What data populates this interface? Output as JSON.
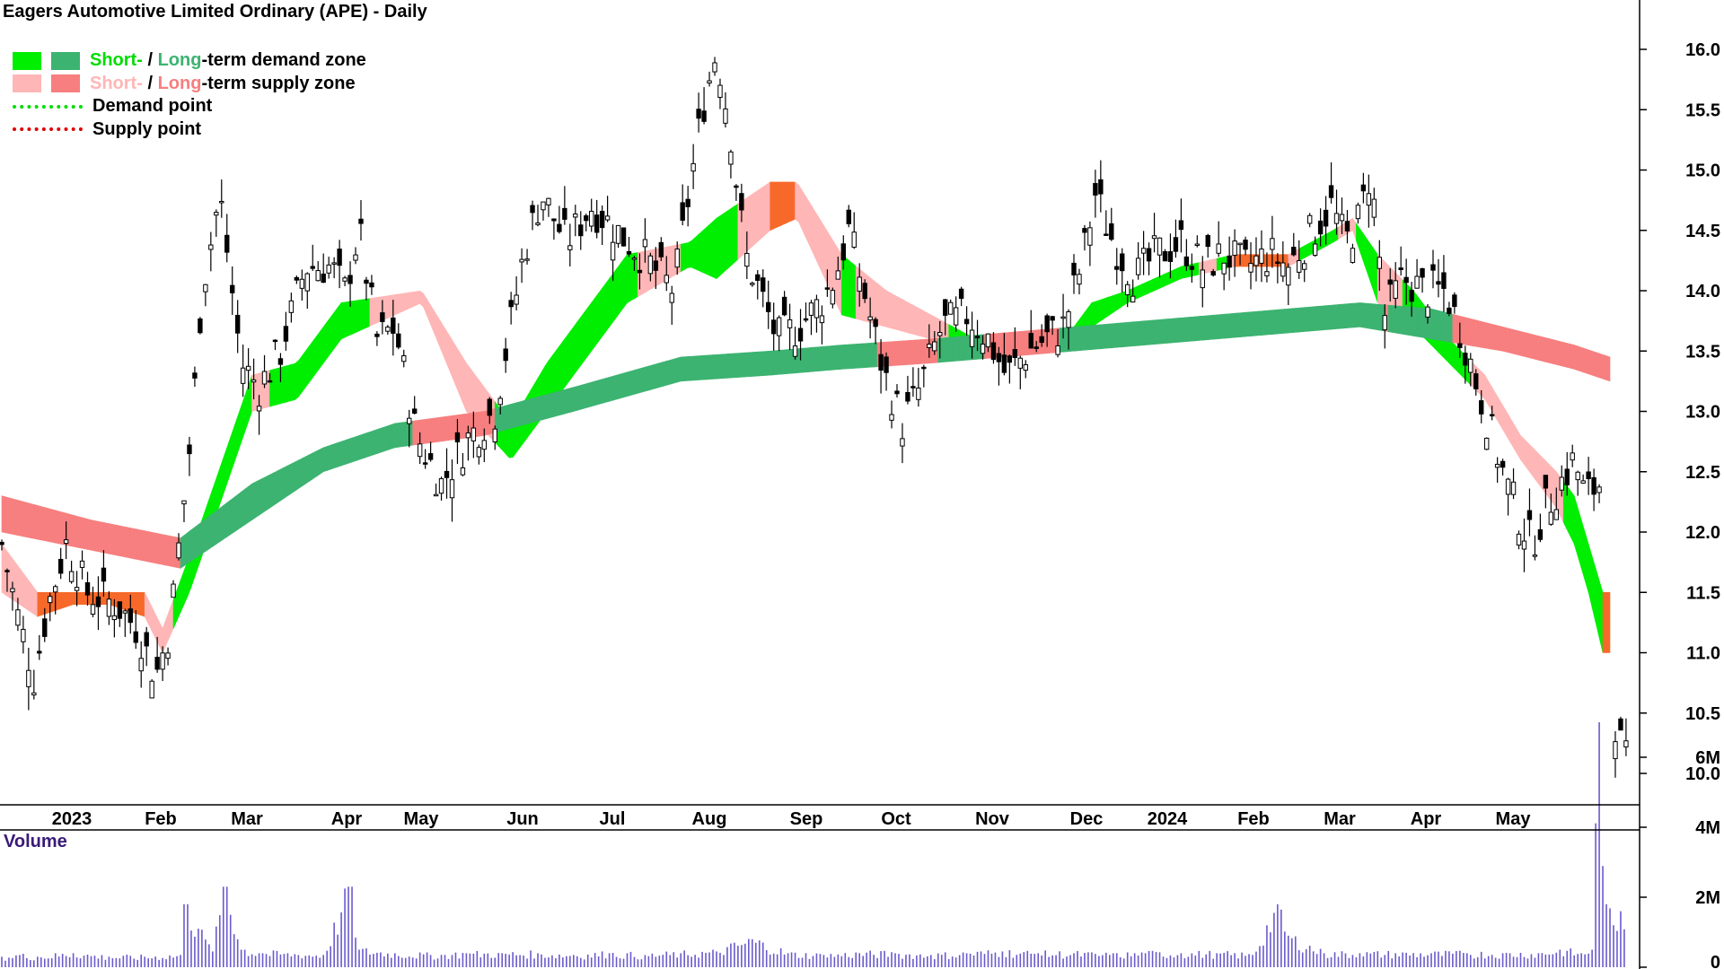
{
  "title": "Eagers Automotive Limited Ordinary (APE) - Daily",
  "legend": {
    "demand_zone": {
      "short": "Short-",
      "sep": " / ",
      "long": "Long",
      "rest": "-term demand zone"
    },
    "supply_zone": {
      "short": "Short-",
      "sep": " / ",
      "long": "Long",
      "rest": "-term supply zone"
    },
    "demand_point": "Demand point",
    "supply_point": "Supply point"
  },
  "colors": {
    "short_demand": "#00ee00",
    "long_demand": "#3cb371",
    "short_supply": "#ffb6b6",
    "long_supply": "#f77f7f",
    "transition": "#f7692a",
    "demand_point": "#00dd00",
    "supply_point": "#dd0000",
    "volume": "#6a5acd",
    "volume_title": "#3a1a78"
  },
  "volume_label": "Volume",
  "chart_data": {
    "type": "candlestick",
    "x_labels": [
      "2023",
      "Feb",
      "Mar",
      "Apr",
      "May",
      "Jun",
      "Jul",
      "Aug",
      "Sep",
      "Oct",
      "Nov",
      "Dec",
      "2024",
      "Feb",
      "Mar",
      "Apr",
      "May"
    ],
    "y_ticks": [
      "10.0",
      "10.5",
      "11.0",
      "11.5",
      "12.0",
      "12.5",
      "13.0",
      "13.5",
      "14.0",
      "14.5",
      "15.0",
      "15.5",
      "16.0"
    ],
    "ylim": [
      9.75,
      16.4
    ],
    "volume_ticks": [
      "0",
      "2M",
      "4M",
      "6M"
    ],
    "volume_lim": [
      0,
      7
    ],
    "close_path": [
      [
        0,
        11.9
      ],
      [
        9,
        11.3
      ],
      [
        18,
        10.8
      ],
      [
        26,
        11.4
      ],
      [
        36,
        11.9
      ],
      [
        48,
        11.5
      ],
      [
        64,
        11.4
      ],
      [
        76,
        11.2
      ],
      [
        86,
        10.8
      ],
      [
        94,
        11.2
      ],
      [
        106,
        12.8
      ],
      [
        112,
        14.0
      ],
      [
        122,
        14.8
      ],
      [
        128,
        14.1
      ],
      [
        134,
        13.4
      ],
      [
        144,
        13.2
      ],
      [
        156,
        13.5
      ],
      [
        170,
        14.2
      ],
      [
        184,
        14.2
      ],
      [
        192,
        14.0
      ],
      [
        200,
        14.5
      ],
      [
        210,
        13.6
      ],
      [
        220,
        13.7
      ],
      [
        232,
        12.8
      ],
      [
        246,
        12.4
      ],
      [
        262,
        12.8
      ],
      [
        276,
        13.0
      ],
      [
        292,
        14.3
      ],
      [
        302,
        14.8
      ],
      [
        316,
        14.4
      ],
      [
        330,
        14.7
      ],
      [
        344,
        14.5
      ],
      [
        358,
        14.3
      ],
      [
        364,
        14.2
      ],
      [
        376,
        14.0
      ],
      [
        392,
        15.5
      ],
      [
        400,
        16.0
      ],
      [
        408,
        15.3
      ],
      [
        416,
        14.3
      ],
      [
        424,
        14.0
      ],
      [
        434,
        13.6
      ],
      [
        446,
        13.7
      ],
      [
        458,
        13.9
      ],
      [
        466,
        14.1
      ],
      [
        474,
        14.5
      ],
      [
        484,
        13.9
      ],
      [
        494,
        13.3
      ],
      [
        504,
        12.9
      ],
      [
        514,
        13.2
      ],
      [
        526,
        13.7
      ],
      [
        540,
        13.8
      ],
      [
        552,
        13.6
      ],
      [
        562,
        13.3
      ],
      [
        574,
        13.5
      ],
      [
        584,
        13.6
      ],
      [
        594,
        13.7
      ],
      [
        604,
        14.2
      ],
      [
        612,
        14.8
      ],
      [
        622,
        14.4
      ],
      [
        634,
        14.1
      ],
      [
        646,
        14.3
      ],
      [
        660,
        14.4
      ],
      [
        672,
        14.2
      ],
      [
        684,
        14.3
      ],
      [
        696,
        14.2
      ],
      [
        710,
        14.3
      ],
      [
        720,
        14.2
      ],
      [
        734,
        14.5
      ],
      [
        744,
        14.7
      ],
      [
        752,
        14.4
      ],
      [
        760,
        14.6
      ],
      [
        766,
        15.0
      ],
      [
        774,
        13.8
      ],
      [
        784,
        14.1
      ],
      [
        796,
        14.0
      ],
      [
        808,
        14.0
      ],
      [
        818,
        13.6
      ],
      [
        826,
        13.2
      ],
      [
        834,
        12.8
      ],
      [
        842,
        12.4
      ],
      [
        850,
        12.1
      ],
      [
        856,
        11.9
      ],
      [
        864,
        12.2
      ],
      [
        872,
        12.4
      ],
      [
        880,
        12.6
      ],
      [
        886,
        12.3
      ],
      [
        894,
        12.4
      ],
      [
        902,
        10.5
      ],
      [
        908,
        10.1
      ]
    ],
    "volume_bars": [
      [
        0,
        0.3
      ],
      [
        10,
        0.35
      ],
      [
        20,
        0.3
      ],
      [
        40,
        0.4
      ],
      [
        60,
        0.3
      ],
      [
        80,
        0.3
      ],
      [
        100,
        0.35
      ],
      [
        103,
        1.8
      ],
      [
        110,
        1.1
      ],
      [
        118,
        0.45
      ],
      [
        125,
        2.3
      ],
      [
        135,
        0.5
      ],
      [
        145,
        0.4
      ],
      [
        160,
        0.4
      ],
      [
        180,
        0.35
      ],
      [
        195,
        2.3
      ],
      [
        200,
        0.5
      ],
      [
        220,
        0.4
      ],
      [
        240,
        0.35
      ],
      [
        260,
        0.4
      ],
      [
        280,
        0.4
      ],
      [
        300,
        0.4
      ],
      [
        320,
        0.35
      ],
      [
        340,
        0.4
      ],
      [
        360,
        0.35
      ],
      [
        380,
        0.4
      ],
      [
        400,
        0.45
      ],
      [
        420,
        0.8
      ],
      [
        440,
        0.4
      ],
      [
        460,
        0.35
      ],
      [
        480,
        0.4
      ],
      [
        500,
        0.4
      ],
      [
        520,
        0.35
      ],
      [
        540,
        0.4
      ],
      [
        560,
        0.45
      ],
      [
        580,
        0.4
      ],
      [
        600,
        0.4
      ],
      [
        620,
        0.35
      ],
      [
        640,
        0.4
      ],
      [
        660,
        0.4
      ],
      [
        680,
        0.4
      ],
      [
        700,
        0.35
      ],
      [
        714,
        1.8
      ],
      [
        720,
        0.9
      ],
      [
        740,
        0.4
      ],
      [
        760,
        0.4
      ],
      [
        780,
        0.4
      ],
      [
        800,
        0.4
      ],
      [
        820,
        0.4
      ],
      [
        840,
        0.4
      ],
      [
        860,
        0.4
      ],
      [
        872,
        0.5
      ],
      [
        884,
        0.4
      ],
      [
        890,
        0.5
      ],
      [
        894,
        7.0
      ],
      [
        898,
        1.8
      ],
      [
        902,
        1.2
      ],
      [
        906,
        1.6
      ]
    ],
    "bands": [
      {
        "name": "short-term zone",
        "upper": [
          [
            0,
            11.9
          ],
          [
            20,
            11.5
          ],
          [
            40,
            11.5
          ],
          [
            60,
            11.5
          ],
          [
            80,
            11.5
          ],
          [
            90,
            11.2
          ],
          [
            105,
            11.8
          ],
          [
            140,
            13.3
          ],
          [
            165,
            13.4
          ],
          [
            190,
            13.9
          ],
          [
            235,
            14.0
          ],
          [
            260,
            13.4
          ],
          [
            285,
            12.9
          ],
          [
            305,
            13.4
          ],
          [
            350,
            14.3
          ],
          [
            385,
            14.4
          ],
          [
            400,
            14.6
          ],
          [
            430,
            14.9
          ],
          [
            445,
            14.9
          ],
          [
            470,
            14.3
          ],
          [
            495,
            14.0
          ],
          [
            520,
            13.8
          ],
          [
            545,
            13.6
          ],
          [
            565,
            13.6
          ],
          [
            590,
            13.5
          ],
          [
            610,
            13.9
          ],
          [
            630,
            14.0
          ],
          [
            660,
            14.2
          ],
          [
            690,
            14.3
          ],
          [
            720,
            14.3
          ],
          [
            745,
            14.5
          ],
          [
            756,
            14.6
          ],
          [
            770,
            14.3
          ],
          [
            790,
            14.0
          ],
          [
            810,
            13.6
          ],
          [
            830,
            13.3
          ],
          [
            850,
            12.8
          ],
          [
            870,
            12.5
          ],
          [
            880,
            12.3
          ],
          [
            888,
            11.9
          ],
          [
            896,
            11.5
          ]
        ],
        "lower": [
          [
            0,
            11.5
          ],
          [
            20,
            11.3
          ],
          [
            40,
            11.4
          ],
          [
            60,
            11.4
          ],
          [
            80,
            11.3
          ],
          [
            90,
            11.0
          ],
          [
            105,
            11.5
          ],
          [
            140,
            13.0
          ],
          [
            165,
            13.1
          ],
          [
            190,
            13.6
          ],
          [
            235,
            13.9
          ],
          [
            260,
            13.0
          ],
          [
            285,
            12.6
          ],
          [
            305,
            13.0
          ],
          [
            350,
            13.9
          ],
          [
            385,
            14.2
          ],
          [
            400,
            14.1
          ],
          [
            430,
            14.5
          ],
          [
            445,
            14.6
          ],
          [
            470,
            13.8
          ],
          [
            495,
            13.7
          ],
          [
            520,
            13.6
          ],
          [
            545,
            13.5
          ],
          [
            565,
            13.5
          ],
          [
            590,
            13.5
          ],
          [
            610,
            13.7
          ],
          [
            630,
            13.9
          ],
          [
            660,
            14.1
          ],
          [
            690,
            14.2
          ],
          [
            720,
            14.2
          ],
          [
            745,
            14.4
          ],
          [
            756,
            14.5
          ],
          [
            770,
            13.9
          ],
          [
            790,
            13.7
          ],
          [
            810,
            13.4
          ],
          [
            830,
            13.1
          ],
          [
            850,
            12.6
          ],
          [
            870,
            12.2
          ],
          [
            880,
            11.9
          ],
          [
            888,
            11.5
          ],
          [
            896,
            11.0
          ]
        ]
      },
      {
        "name": "long-term zone",
        "upper": [
          [
            0,
            12.3
          ],
          [
            50,
            12.1
          ],
          [
            100,
            11.95
          ],
          [
            140,
            12.4
          ],
          [
            180,
            12.7
          ],
          [
            220,
            12.9
          ],
          [
            270,
            13.0
          ],
          [
            320,
            13.2
          ],
          [
            380,
            13.45
          ],
          [
            430,
            13.5
          ],
          [
            470,
            13.55
          ],
          [
            520,
            13.6
          ],
          [
            560,
            13.65
          ],
          [
            600,
            13.7
          ],
          [
            640,
            13.75
          ],
          [
            680,
            13.8
          ],
          [
            720,
            13.85
          ],
          [
            760,
            13.9
          ],
          [
            800,
            13.85
          ],
          [
            840,
            13.7
          ],
          [
            880,
            13.55
          ],
          [
            900,
            13.45
          ]
        ],
        "lower": [
          [
            0,
            12.0
          ],
          [
            50,
            11.85
          ],
          [
            100,
            11.7
          ],
          [
            140,
            12.1
          ],
          [
            180,
            12.5
          ],
          [
            220,
            12.7
          ],
          [
            270,
            12.8
          ],
          [
            320,
            13.0
          ],
          [
            380,
            13.25
          ],
          [
            430,
            13.3
          ],
          [
            470,
            13.35
          ],
          [
            520,
            13.4
          ],
          [
            560,
            13.45
          ],
          [
            600,
            13.5
          ],
          [
            640,
            13.55
          ],
          [
            680,
            13.6
          ],
          [
            720,
            13.65
          ],
          [
            760,
            13.7
          ],
          [
            800,
            13.6
          ],
          [
            840,
            13.5
          ],
          [
            880,
            13.35
          ],
          [
            900,
            13.25
          ]
        ]
      }
    ]
  }
}
